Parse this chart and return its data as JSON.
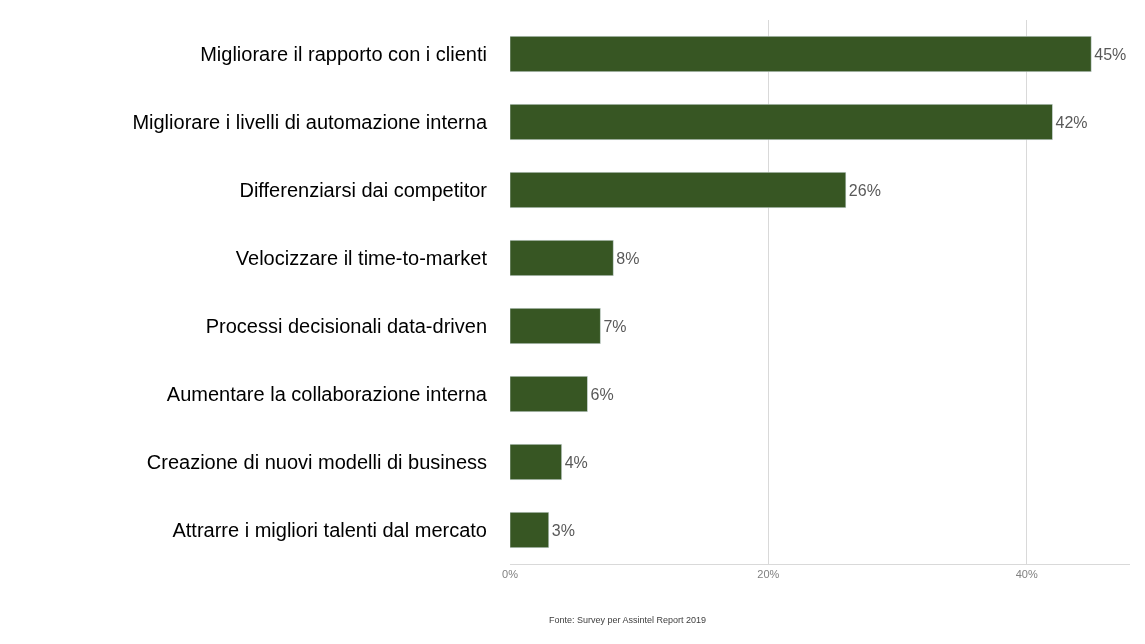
{
  "chart_data": {
    "type": "bar",
    "orientation": "horizontal",
    "categories": [
      "Migliorare il rapporto con i clienti",
      "Migliorare i livelli di automazione interna",
      "Differenziarsi dai competitor",
      "Velocizzare il time-to-market",
      "Processi decisionali data-driven",
      "Aumentare la collaborazione interna",
      "Creazione di nuovi modelli di business",
      "Attrarre i migliori talenti dal mercato"
    ],
    "values": [
      45,
      42,
      26,
      8,
      7,
      6,
      4,
      3
    ],
    "value_labels": [
      "45%",
      "42%",
      "26%",
      "8%",
      "7%",
      "6%",
      "4%",
      "3%"
    ],
    "color": "#375623",
    "xlim": [
      0,
      48
    ],
    "xticks": [
      {
        "value": 0,
        "label": "0%"
      },
      {
        "value": 20,
        "label": "20%"
      },
      {
        "value": 40,
        "label": "40%"
      }
    ],
    "grid": "x",
    "annotations": [
      "Fonte: Survey per Assintel Report 2019"
    ]
  }
}
